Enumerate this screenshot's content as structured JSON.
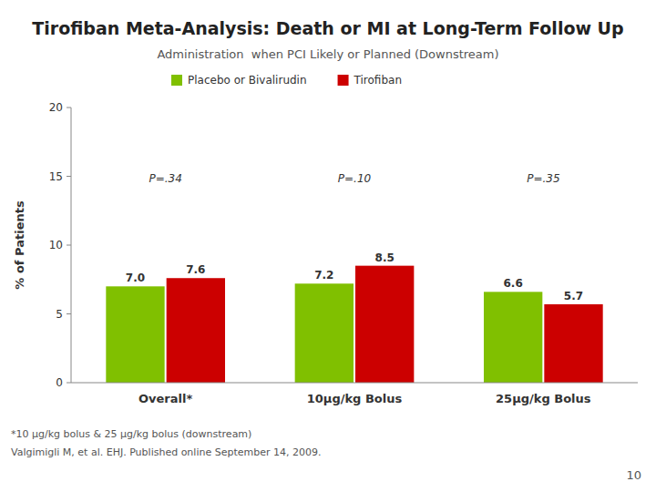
{
  "chart_data": {
    "type": "bar",
    "title": "Tirofiban Meta-Analysis: Death or MI at Long-Term Follow Up",
    "subtitle": "Administration  when PCI Likely or Planned (Downstream)",
    "categories": [
      "Overall*",
      "10μg/kg Bolus",
      "25μg/kg Bolus"
    ],
    "series": [
      {
        "name": "Placebo or Bivalirudin",
        "color": "#80c000",
        "values": [
          7.0,
          7.2,
          6.6
        ],
        "value_labels": [
          "7.0",
          "7.2",
          "6.6"
        ]
      },
      {
        "name": "Tirofiban",
        "color": "#cc0000",
        "values": [
          7.6,
          8.5,
          5.7
        ],
        "value_labels": [
          "7.6",
          "8.5",
          "5.7"
        ]
      }
    ],
    "ylabel": "% of Patients",
    "ylim": [
      0,
      20
    ],
    "yticks": [
      0,
      5,
      10,
      15,
      20
    ],
    "grid": false,
    "legend": "top",
    "data_labels": true,
    "annotations": [
      "P=.34",
      "P=.10",
      "P=.35"
    ],
    "footnotes": [
      "*10 μg/kg bolus & 25 μg/kg bolus (downstream)",
      "Valgimigli M, et al. EHJ. Published online September 14, 2009."
    ],
    "page_number": "10"
  }
}
